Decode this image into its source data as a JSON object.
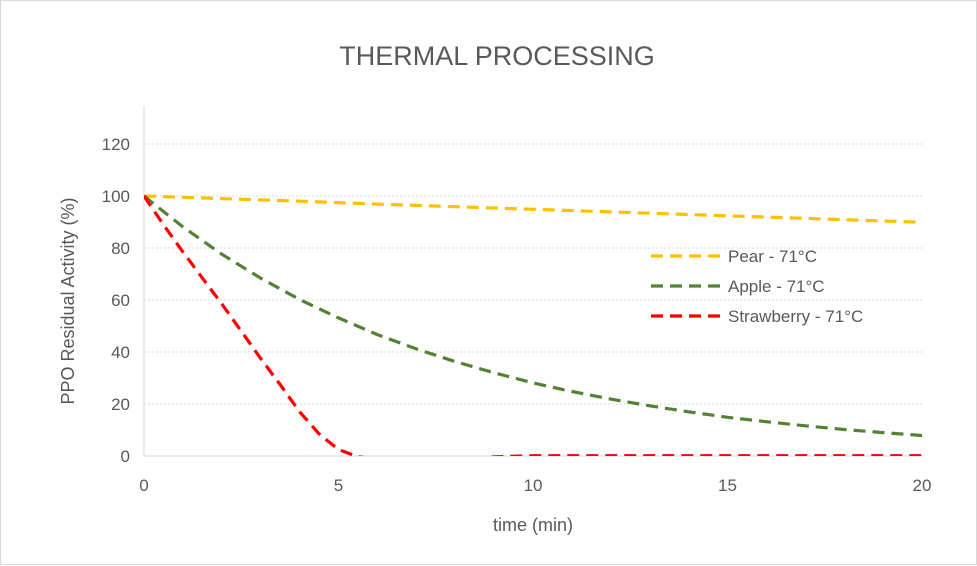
{
  "chart_data": {
    "type": "line",
    "title": "THERMAL PROCESSING",
    "xlabel": "time (min)",
    "ylabel": "PPO Residual Activity (%)",
    "xlim": [
      0,
      20
    ],
    "ylim": [
      0,
      120
    ],
    "x_ticks": [
      "0",
      "5",
      "10",
      "15",
      "20"
    ],
    "y_ticks": [
      "0",
      "20",
      "40",
      "60",
      "80",
      "100",
      "120"
    ],
    "grid": "horizontal dotted",
    "legend_position": "right",
    "line_style": "dashed",
    "series": [
      {
        "name": "Pear - 71°C",
        "color": "#ffc000",
        "x": [
          0,
          2,
          4,
          6,
          8,
          10,
          12,
          14,
          16,
          18,
          20
        ],
        "y": [
          100,
          99,
          98,
          96.9,
          95.9,
          94.9,
          93.9,
          92.9,
          91.9,
          90.9,
          89.9
        ]
      },
      {
        "name": "Apple - 71°C",
        "color": "#548235",
        "x": [
          0,
          1,
          2,
          3,
          4,
          5,
          6,
          7,
          8,
          9,
          10,
          11,
          12,
          13,
          14,
          15,
          16,
          17,
          18,
          19,
          20
        ],
        "y": [
          100,
          88.1,
          77.6,
          68.4,
          60.2,
          53.1,
          46.7,
          41.2,
          36.3,
          32.0,
          28.1,
          24.8,
          21.9,
          19.3,
          17.0,
          14.9,
          13.2,
          11.6,
          10.2,
          9.0,
          7.9
        ]
      },
      {
        "name": "Strawberry - 71°C",
        "color": "#ff0000",
        "x": [
          0,
          0.5,
          1,
          1.5,
          2,
          2.5,
          3,
          3.5,
          4,
          4.5,
          5,
          5.5,
          6,
          7,
          8,
          9,
          10,
          11,
          12,
          13,
          14,
          15,
          16,
          17,
          18,
          19,
          20
        ],
        "y": [
          100,
          89,
          78.5,
          68.5,
          58.5,
          48,
          37.5,
          27.5,
          17,
          8.5,
          2.5,
          -0.3,
          -1.2,
          -2.3,
          -1.8,
          -0.3,
          0.1,
          0.1,
          0.1,
          0.1,
          0.1,
          0.1,
          0.1,
          0.1,
          0.1,
          0.1,
          0.1
        ]
      }
    ]
  }
}
